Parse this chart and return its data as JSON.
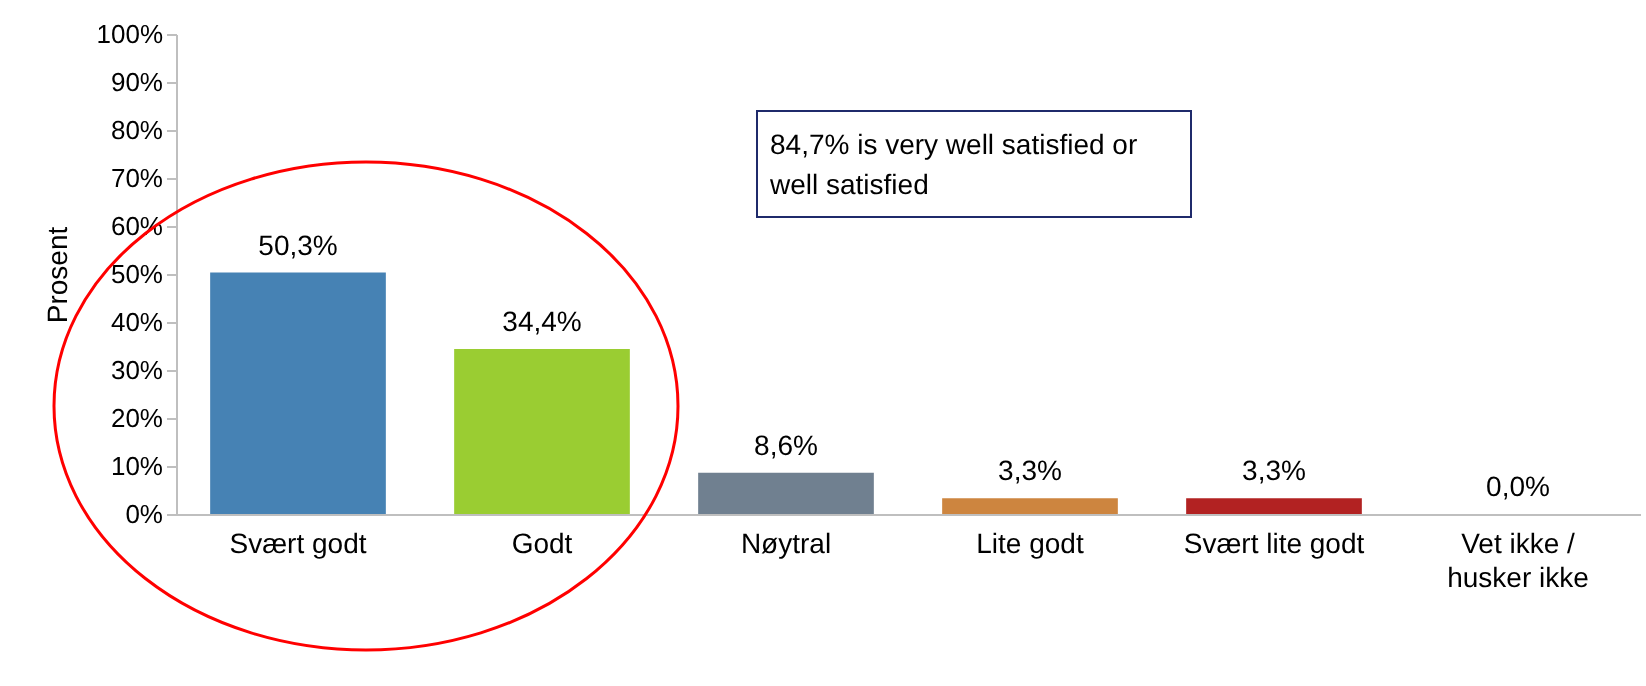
{
  "chart_data": {
    "type": "bar",
    "ylabel": "Prosent",
    "categories": [
      "Svært godt",
      "Godt",
      "Nøytral",
      "Lite godt",
      "Svært lite godt",
      "Vet ikke / husker ikke"
    ],
    "values": [
      50.3,
      34.4,
      8.6,
      3.3,
      3.3,
      0.0
    ],
    "colors": [
      "#4682b4",
      "#9acd32",
      "#708090",
      "#cd853f",
      "#b22222",
      "#4682b4"
    ],
    "value_labels": [
      "50,3%",
      "34,4%",
      "8,6%",
      "3,3%",
      "3,3%",
      "0,0%"
    ],
    "ylim": [
      0,
      100
    ],
    "yticks": [
      {
        "value": 0,
        "label": "0%"
      },
      {
        "value": 10,
        "label": "10%"
      },
      {
        "value": 20,
        "label": "20%"
      },
      {
        "value": 30,
        "label": "30%"
      },
      {
        "value": 40,
        "label": "40%"
      },
      {
        "value": 50,
        "label": "50%"
      },
      {
        "value": 60,
        "label": "60%"
      },
      {
        "value": 70,
        "label": "70%"
      },
      {
        "value": 80,
        "label": "80%"
      },
      {
        "value": 90,
        "label": "90%"
      },
      {
        "value": 100,
        "label": "100%"
      }
    ],
    "annotations": [
      "84,7% is very well satisfied or well satisfied"
    ],
    "grid": false
  }
}
